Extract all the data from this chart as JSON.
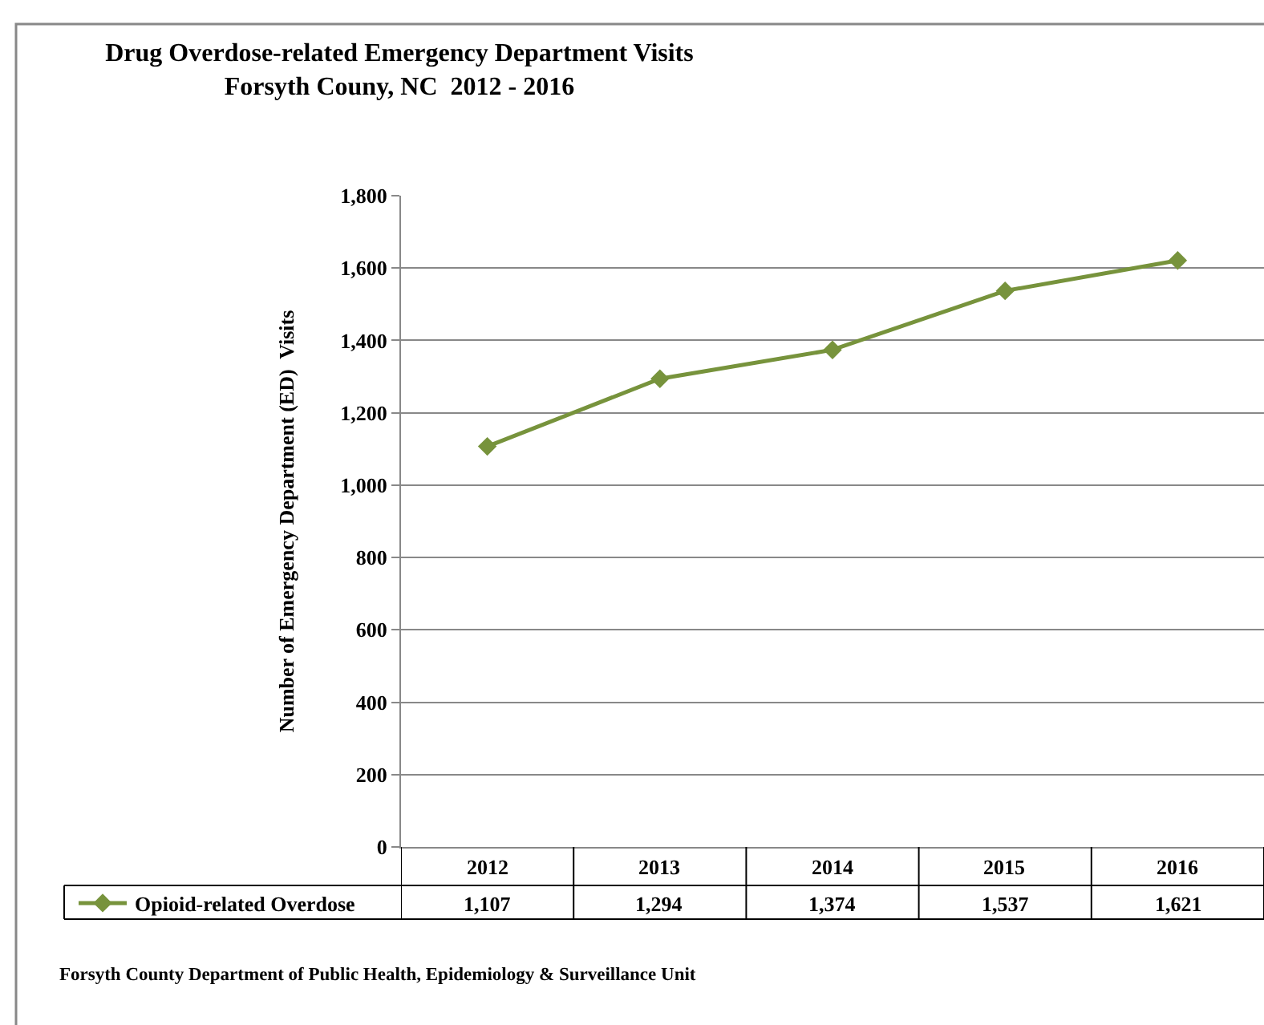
{
  "chart_data": {
    "type": "line",
    "title": "Drug Overdose-related Emergency Department Visits\nForsyth Couny, NC  2012 - 2016",
    "ylabel": "Number of Emergency Department (ED)  Visits",
    "categories": [
      "2012",
      "2013",
      "2014",
      "2015",
      "2016"
    ],
    "series": [
      {
        "name": "Opioid-related Overdose",
        "color": "#77933c",
        "values": [
          1107,
          1294,
          1374,
          1537,
          1621
        ],
        "value_labels": [
          "1,107",
          "1,294",
          "1,374",
          "1,537",
          "1,621"
        ]
      }
    ],
    "ylim": [
      0,
      1800
    ],
    "yticks": [
      {
        "value": 0,
        "label": "0"
      },
      {
        "value": 200,
        "label": "200"
      },
      {
        "value": 400,
        "label": "400"
      },
      {
        "value": 600,
        "label": "600"
      },
      {
        "value": 800,
        "label": "800"
      },
      {
        "value": 1000,
        "label": "1,000"
      },
      {
        "value": 1200,
        "label": "1,200"
      },
      {
        "value": 1400,
        "label": "1,400"
      },
      {
        "value": 1600,
        "label": "1,600"
      },
      {
        "value": 1800,
        "label": "1,800"
      }
    ],
    "grid": "y",
    "legend": "bottom left",
    "marker": "diamond",
    "line_style": "solid",
    "annotations": [
      "Forsyth County Department of Public Health, Epidemiology & Surveillance Unit"
    ]
  }
}
